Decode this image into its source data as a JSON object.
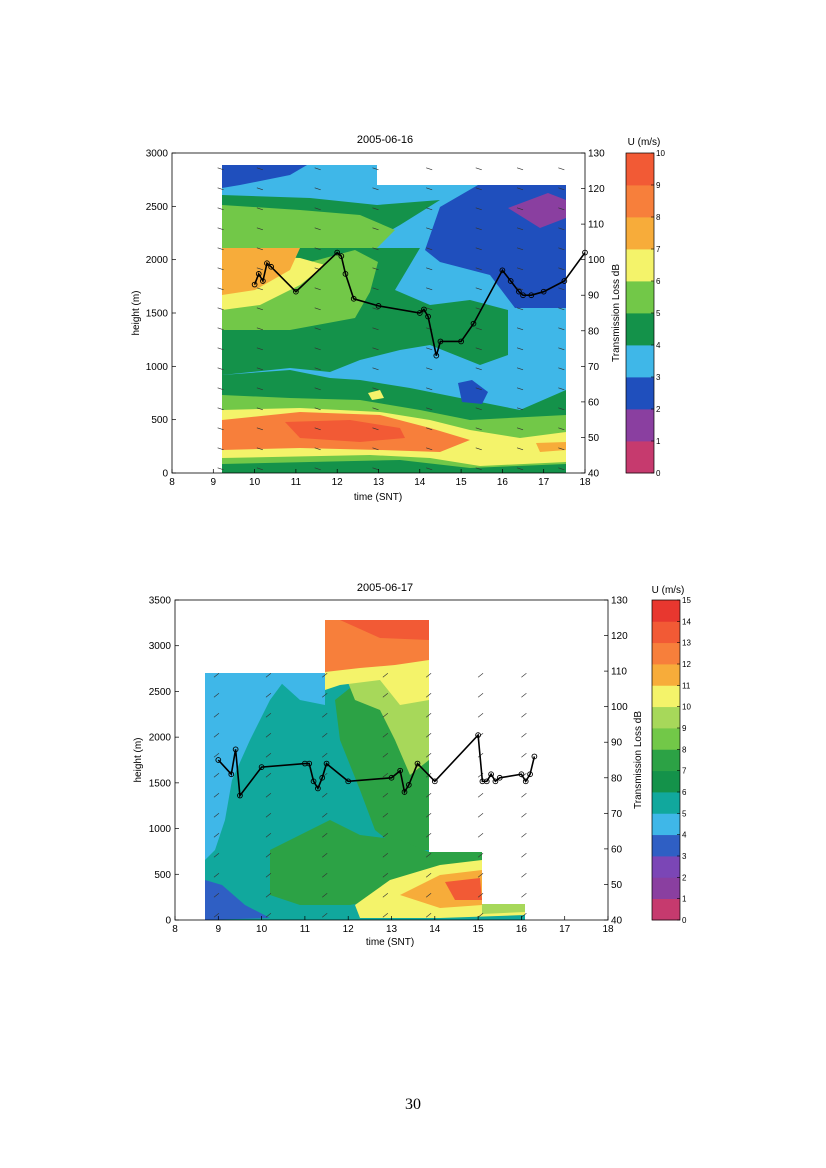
{
  "page": {
    "number": "30"
  },
  "palette": {
    "c0": "#c63a6e",
    "c1": "#8a3fa0",
    "c2": "#7b46b6",
    "c3": "#2f5fc4",
    "c4": "#1f4fbd",
    "c5": "#3fb7e8",
    "c6": "#11a89d",
    "c7": "#14924a",
    "c8": "#2ca245",
    "c9": "#72c848",
    "c10": "#a7d85a",
    "c11": "#f4f36a",
    "c12": "#f7ac3a",
    "c13": "#f77f3b",
    "c14": "#f25a35",
    "c15": "#e8372f",
    "line": "#000000"
  },
  "chart_data": [
    {
      "type": "heatmap",
      "title": "2005-06-16",
      "xlabel": "time (SNT)",
      "ylabel": "height (m)",
      "y2label": "Transmission Loss dB",
      "xlim": [
        8,
        18
      ],
      "ylim": [
        0,
        3000
      ],
      "y2lim": [
        40,
        130
      ],
      "xticks": [
        "8",
        "9",
        "10",
        "11",
        "12",
        "13",
        "14",
        "15",
        "16",
        "17",
        "18"
      ],
      "yticks": [
        "0",
        "500",
        "1000",
        "1500",
        "2000",
        "2500",
        "3000"
      ],
      "y2ticks": [
        "40",
        "50",
        "60",
        "70",
        "80",
        "90",
        "100",
        "110",
        "120",
        "130"
      ],
      "colorbar": {
        "label": "U (m/s)",
        "ticks": [
          "0",
          "1",
          "2",
          "3",
          "4",
          "5",
          "6",
          "7",
          "8",
          "9",
          "10"
        ],
        "colors": [
          "#c63a6e",
          "#8a3fa0",
          "#1f4fbd",
          "#3fb7e8",
          "#14924a",
          "#72c848",
          "#f4f36a",
          "#f7ac3a",
          "#f77f3b",
          "#f25a35"
        ]
      },
      "series": [
        {
          "values_x": [
            10.0,
            10.1,
            10.2,
            10.3,
            10.4,
            11.0,
            12.0,
            12.1,
            12.2,
            12.4,
            13.0,
            14.0,
            14.1,
            14.2,
            14.4,
            14.5,
            15.0,
            15.3,
            16.0,
            16.2,
            16.4,
            16.5,
            16.7,
            17.0,
            17.5,
            18.0
          ],
          "values_y": [
            93,
            96,
            94,
            99,
            98,
            91,
            102,
            101,
            96,
            89,
            87,
            85,
            86,
            84,
            73,
            77,
            77,
            82,
            97,
            94,
            91,
            90,
            90,
            91,
            94,
            102
          ]
        }
      ]
    },
    {
      "type": "heatmap",
      "title": "2005-06-17",
      "xlabel": "time (SNT)",
      "ylabel": "height (m)",
      "y2label": "Transmission Loss dB",
      "xlim": [
        8,
        18
      ],
      "ylim": [
        0,
        3500
      ],
      "y2lim": [
        40,
        130
      ],
      "xticks": [
        "8",
        "9",
        "10",
        "11",
        "12",
        "13",
        "14",
        "15",
        "16",
        "17",
        "18"
      ],
      "yticks": [
        "0",
        "500",
        "1000",
        "1500",
        "2000",
        "2500",
        "3000",
        "3500"
      ],
      "y2ticks": [
        "40",
        "50",
        "60",
        "70",
        "80",
        "90",
        "100",
        "110",
        "120",
        "130"
      ],
      "colorbar": {
        "label": "U (m/s)",
        "ticks": [
          "0",
          "1",
          "2",
          "3",
          "4",
          "5",
          "6",
          "7",
          "8",
          "9",
          "10",
          "11",
          "12",
          "13",
          "14",
          "15"
        ],
        "colors": [
          "#c63a6e",
          "#8a3fa0",
          "#7b46b6",
          "#2f5fc4",
          "#3fb7e8",
          "#11a89d",
          "#14924a",
          "#2ca245",
          "#72c848",
          "#a7d85a",
          "#f4f36a",
          "#f7ac3a",
          "#f77f3b",
          "#f25a35",
          "#e8372f"
        ]
      },
      "series": [
        {
          "values_x": [
            9.0,
            9.3,
            9.4,
            9.5,
            10.0,
            11.0,
            11.1,
            11.2,
            11.3,
            11.4,
            11.5,
            12.0,
            13.0,
            13.2,
            13.3,
            13.4,
            13.6,
            14.0,
            15.0,
            15.1,
            15.2,
            15.3,
            15.4,
            15.5,
            16.0,
            16.1,
            16.2,
            16.3
          ],
          "values_y": [
            85,
            81,
            88,
            75,
            83,
            84,
            84,
            79,
            77,
            80,
            84,
            79,
            80,
            82,
            76,
            78,
            84,
            79,
            92,
            79,
            79,
            81,
            79,
            80,
            81,
            79,
            81,
            86
          ]
        }
      ]
    }
  ]
}
